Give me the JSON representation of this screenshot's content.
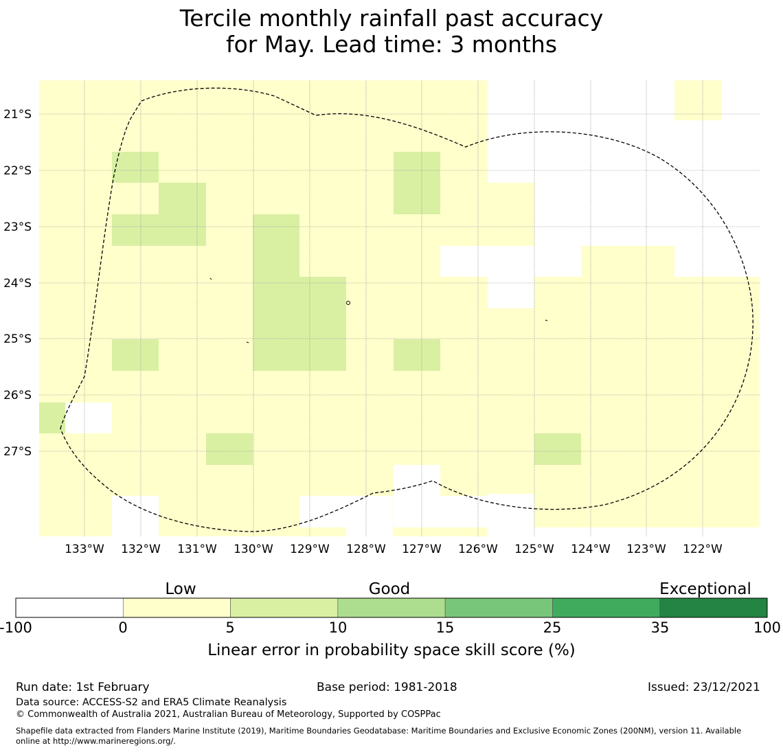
{
  "title": {
    "line1": "Tercile monthly rainfall past accuracy",
    "line2": "for May. Lead time: 3 months"
  },
  "map": {
    "lon_labels": [
      "133°W",
      "132°W",
      "131°W",
      "130°W",
      "129°W",
      "128°W",
      "127°W",
      "126°W",
      "125°W",
      "124°W",
      "123°W",
      "122°W"
    ],
    "lat_labels": [
      "21°S",
      "22°S",
      "23°S",
      "24°S",
      "25°S",
      "26°S",
      "27°S"
    ],
    "boundary_style": "dashed",
    "colors": {
      "white": "#ffffff",
      "low": "#ffffcc",
      "good": "#d9f0a3",
      "grid": "#999999",
      "boundary": "#000000"
    }
  },
  "colorbar": {
    "categories": [
      "Low",
      "Good",
      "Exceptional"
    ],
    "boundaries": [
      "-100",
      "0",
      "5",
      "10",
      "15",
      "25",
      "35",
      "100"
    ],
    "colors": [
      "#ffffff",
      "#ffffcc",
      "#d9f0a3",
      "#addd8e",
      "#78c679",
      "#41ab5d",
      "#238443"
    ],
    "title": "Linear error in probability space skill score (%)"
  },
  "footer": {
    "run_date": "Run date: 1st February",
    "base_period": "Base period: 1981-2018",
    "issued": "Issued: 23/12/2021",
    "data_source": "Data source: ACCESS-S2 and ERA5 Climate Reanalysis",
    "copyright": "© Commonwealth of Australia 2021, Australian Bureau of Meteorology, Supported by COSPPac",
    "shapefile_line1": "Shapefile data extracted from Flanders Marine Institute (2019), Maritime Boundaries Geodatabase: Maritime Boundaries and Exclusive Economic Zones (200NM), version 11. Available",
    "shapefile_line2": "online at http://www.marineregions.org/."
  }
}
